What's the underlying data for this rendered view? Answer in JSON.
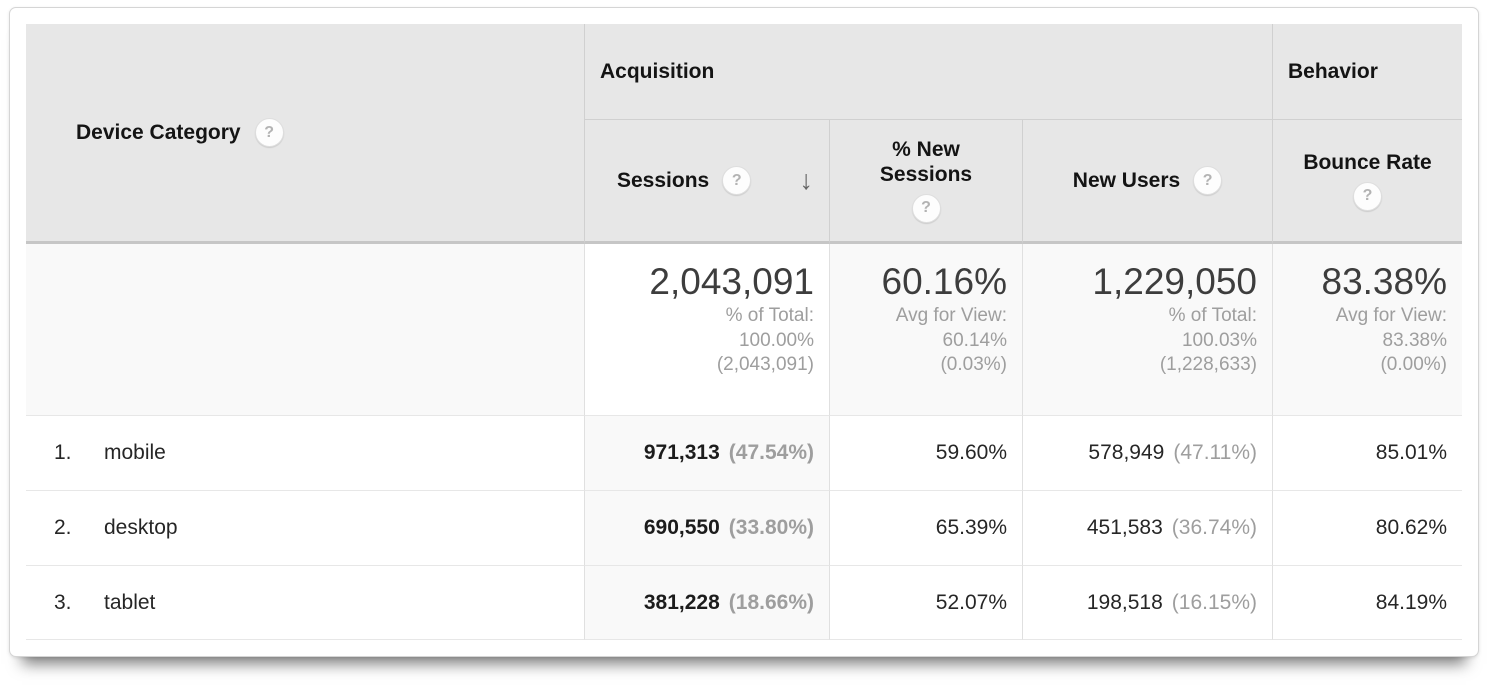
{
  "icons": {
    "help": "?",
    "sort_descending": "↓"
  },
  "colors": {
    "header_bg": "#e7e7e7",
    "sorted_column_bg": "#f9f9f9",
    "summary_row_bg": "#f9f9f9",
    "muted_text": "#9e9e9e"
  },
  "table": {
    "dimension": {
      "label": "Device Category"
    },
    "group_headers": {
      "acquisition": "Acquisition",
      "behavior": "Behavior"
    },
    "metric_headers": {
      "sessions": "Sessions",
      "new_sessions": "% New Sessions",
      "new_users": "New Users",
      "bounce_rate": "Bounce Rate"
    },
    "sort": {
      "column": "Sessions",
      "direction": "descending"
    },
    "summary": {
      "sessions": {
        "value": "2,043,091",
        "sub": [
          "% of Total:",
          "100.00%",
          "(2,043,091)"
        ]
      },
      "new_sessions": {
        "value": "60.16%",
        "sub": [
          "Avg for View:",
          "60.14%",
          "(0.03%)"
        ]
      },
      "new_users": {
        "value": "1,229,050",
        "sub": [
          "% of Total:",
          "100.03%",
          "(1,228,633)"
        ]
      },
      "bounce_rate": {
        "value": "83.38%",
        "sub": [
          "Avg for View:",
          "83.38%",
          "(0.00%)"
        ]
      }
    },
    "rows": [
      {
        "rank": "1.",
        "device": "mobile",
        "sessions": "971,313",
        "sessions_share": "(47.54%)",
        "pct_new_sessions": "59.60%",
        "new_users": "578,949",
        "new_users_share": "(47.11%)",
        "bounce_rate": "85.01%"
      },
      {
        "rank": "2.",
        "device": "desktop",
        "sessions": "690,550",
        "sessions_share": "(33.80%)",
        "pct_new_sessions": "65.39%",
        "new_users": "451,583",
        "new_users_share": "(36.74%)",
        "bounce_rate": "80.62%"
      },
      {
        "rank": "3.",
        "device": "tablet",
        "sessions": "381,228",
        "sessions_share": "(18.66%)",
        "pct_new_sessions": "52.07%",
        "new_users": "198,518",
        "new_users_share": "(16.15%)",
        "bounce_rate": "84.19%"
      }
    ]
  }
}
